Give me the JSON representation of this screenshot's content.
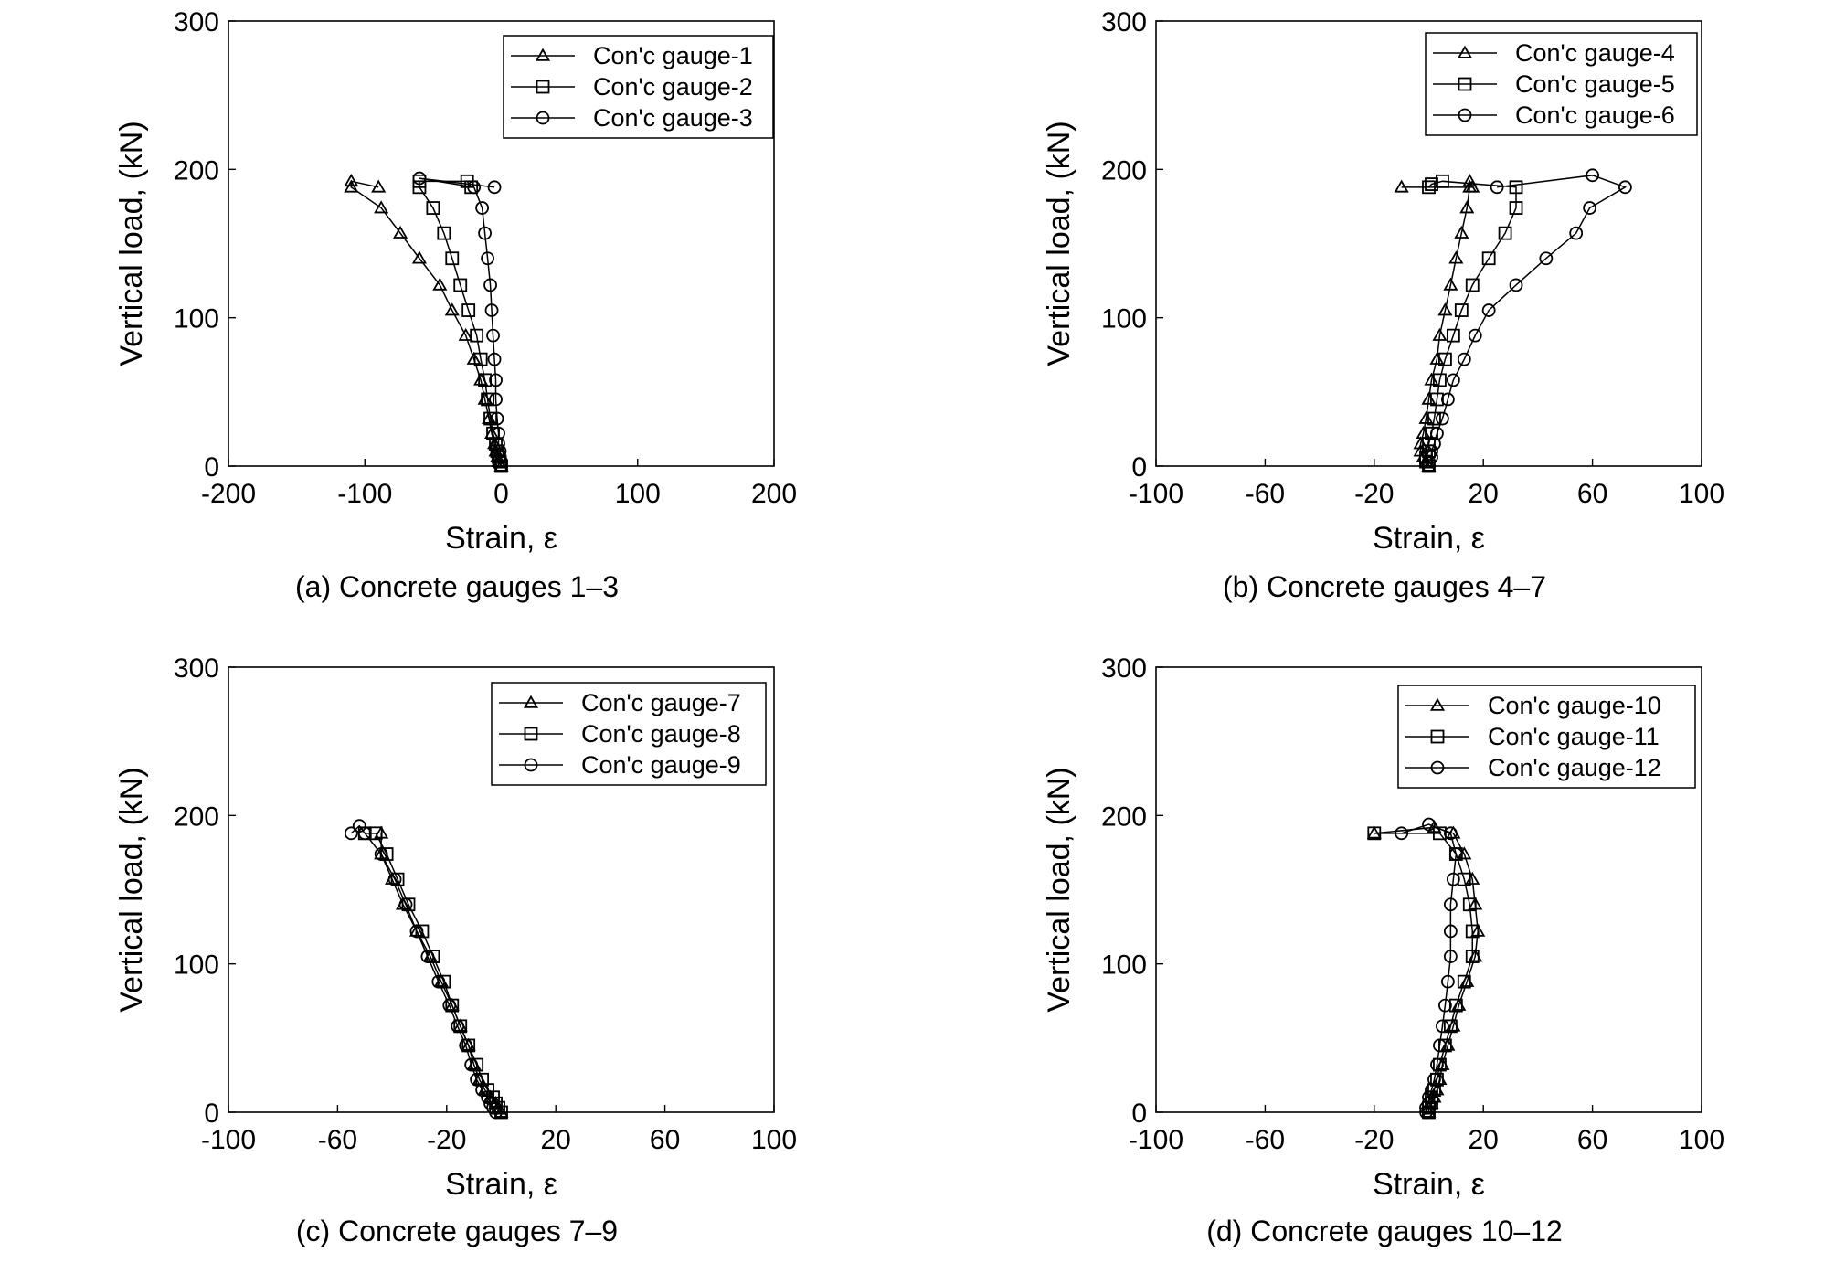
{
  "figure": {
    "captions": [
      "(a) Concrete gauges 1–3",
      "(b) Concrete gauges 4–7",
      "(c) Concrete gauges 7–9",
      "(d) Concrete gauges 10–12"
    ]
  },
  "chart_data": [
    {
      "type": "line",
      "caption": "(a) Concrete gauges 1–3",
      "xlabel": "Strain, ε",
      "ylabel": "Vertical load, (kN)",
      "xlim": [
        -200,
        200
      ],
      "ylim": [
        0,
        300
      ],
      "xticks": [
        -200,
        -100,
        0,
        100,
        200
      ],
      "yticks": [
        0,
        100,
        200,
        300
      ],
      "legend_position": "top-right",
      "series": [
        {
          "name": "Con'c gauge-1",
          "marker": "triangle",
          "x": [
            0,
            -2,
            -3,
            -4,
            -5,
            -7,
            -9,
            -12,
            -15,
            -20,
            -26,
            -36,
            -45,
            -60,
            -74,
            -88,
            -110,
            -110,
            -90
          ],
          "y": [
            0,
            3,
            6,
            10,
            15,
            22,
            32,
            45,
            58,
            72,
            88,
            105,
            122,
            140,
            157,
            174,
            188,
            192,
            188
          ]
        },
        {
          "name": "Con'c gauge-2",
          "marker": "square",
          "x": [
            0,
            -1,
            -2,
            -3,
            -4,
            -6,
            -8,
            -10,
            -12,
            -15,
            -18,
            -24,
            -30,
            -36,
            -42,
            -50,
            -60,
            -60,
            -25,
            -22
          ],
          "y": [
            0,
            3,
            6,
            10,
            15,
            22,
            32,
            45,
            58,
            72,
            88,
            105,
            122,
            140,
            157,
            174,
            188,
            192,
            192,
            188
          ]
        },
        {
          "name": "Con'c gauge-3",
          "marker": "circle",
          "x": [
            0,
            0,
            -1,
            -1,
            -2,
            -2,
            -3,
            -4,
            -4,
            -5,
            -6,
            -7,
            -8,
            -10,
            -12,
            -14,
            -20,
            -60,
            -5
          ],
          "y": [
            0,
            3,
            6,
            10,
            15,
            22,
            32,
            45,
            58,
            72,
            88,
            105,
            122,
            140,
            157,
            174,
            188,
            194,
            188
          ]
        }
      ]
    },
    {
      "type": "line",
      "caption": "(b) Concrete gauges 4–7",
      "xlabel": "Strain, ε",
      "ylabel": "Vertical load, (kN)",
      "xlim": [
        -100,
        100
      ],
      "ylim": [
        0,
        300
      ],
      "xticks": [
        -100,
        -60,
        -20,
        20,
        60,
        100
      ],
      "yticks": [
        0,
        100,
        200,
        300
      ],
      "legend_position": "top-right",
      "series": [
        {
          "name": "Con'c gauge-4",
          "marker": "triangle",
          "x": [
            0,
            -1,
            -2,
            -3,
            -3,
            -2,
            -1,
            0,
            1,
            3,
            4,
            6,
            8,
            10,
            12,
            14,
            15,
            15,
            16,
            -10
          ],
          "y": [
            0,
            3,
            6,
            10,
            15,
            22,
            32,
            45,
            58,
            72,
            88,
            105,
            122,
            140,
            157,
            174,
            188,
            192,
            188,
            188
          ]
        },
        {
          "name": "Con'c gauge-5",
          "marker": "square",
          "x": [
            0,
            -1,
            -1,
            0,
            0,
            1,
            2,
            3,
            4,
            6,
            9,
            12,
            16,
            22,
            28,
            32,
            32,
            5,
            1,
            0
          ],
          "y": [
            0,
            3,
            6,
            10,
            15,
            22,
            32,
            45,
            58,
            72,
            88,
            105,
            122,
            140,
            157,
            174,
            188,
            192,
            190,
            188
          ]
        },
        {
          "name": "Con'c gauge-6",
          "marker": "circle",
          "x": [
            0,
            0,
            1,
            1,
            2,
            3,
            5,
            7,
            9,
            13,
            17,
            22,
            32,
            43,
            54,
            59,
            72,
            60,
            25
          ],
          "y": [
            0,
            3,
            6,
            10,
            15,
            22,
            32,
            45,
            58,
            72,
            88,
            105,
            122,
            140,
            157,
            174,
            188,
            196,
            188
          ]
        }
      ]
    },
    {
      "type": "line",
      "caption": "(c) Concrete gauges 7–9",
      "xlabel": "Strain, ε",
      "ylabel": "Vertical load, (kN)",
      "xlim": [
        -100,
        100
      ],
      "ylim": [
        0,
        300
      ],
      "xticks": [
        -100,
        -60,
        -20,
        20,
        60,
        100
      ],
      "yticks": [
        0,
        100,
        200,
        300
      ],
      "legend_position": "top-right",
      "series": [
        {
          "name": "Con'c gauge-7",
          "marker": "triangle",
          "x": [
            0,
            -1,
            -2,
            -4,
            -6,
            -8,
            -10,
            -12,
            -15,
            -18,
            -22,
            -26,
            -31,
            -36,
            -40,
            -44,
            -44
          ],
          "y": [
            0,
            3,
            6,
            10,
            15,
            22,
            32,
            45,
            58,
            72,
            88,
            105,
            122,
            140,
            157,
            174,
            188
          ]
        },
        {
          "name": "Con'c gauge-8",
          "marker": "square",
          "x": [
            0,
            -1,
            -2,
            -3,
            -5,
            -7,
            -9,
            -12,
            -15,
            -18,
            -21,
            -25,
            -29,
            -34,
            -38,
            -42,
            -46,
            -50
          ],
          "y": [
            0,
            3,
            6,
            10,
            15,
            22,
            32,
            45,
            58,
            72,
            88,
            105,
            122,
            140,
            157,
            174,
            188,
            188
          ]
        },
        {
          "name": "Con'c gauge-9",
          "marker": "circle",
          "x": [
            -2,
            -3,
            -4,
            -5,
            -7,
            -9,
            -11,
            -13,
            -16,
            -19,
            -23,
            -27,
            -31,
            -35,
            -39,
            -44,
            -50,
            -52,
            -55
          ],
          "y": [
            0,
            3,
            6,
            10,
            15,
            22,
            32,
            45,
            58,
            72,
            88,
            105,
            122,
            140,
            157,
            174,
            188,
            193,
            188
          ]
        }
      ]
    },
    {
      "type": "line",
      "caption": "(d) Concrete gauges 10–12",
      "xlabel": "Strain, ε",
      "ylabel": "Vertical load, (kN)",
      "xlim": [
        -100,
        100
      ],
      "ylim": [
        0,
        300
      ],
      "xticks": [
        -100,
        -60,
        -20,
        20,
        60,
        100
      ],
      "yticks": [
        0,
        100,
        200,
        300
      ],
      "legend_position": "top-right",
      "series": [
        {
          "name": "Con'c gauge-10",
          "marker": "triangle",
          "x": [
            0,
            0,
            1,
            2,
            3,
            4,
            5,
            7,
            9,
            11,
            14,
            17,
            18,
            17,
            16,
            13,
            9,
            2,
            -20
          ],
          "y": [
            0,
            3,
            6,
            10,
            15,
            22,
            32,
            45,
            58,
            72,
            88,
            105,
            122,
            140,
            157,
            174,
            188,
            192,
            188
          ]
        },
        {
          "name": "Con'c gauge-11",
          "marker": "square",
          "x": [
            0,
            0,
            1,
            1,
            2,
            3,
            4,
            6,
            8,
            10,
            13,
            16,
            16,
            15,
            13,
            10,
            4,
            -20
          ],
          "y": [
            0,
            3,
            6,
            10,
            15,
            22,
            32,
            45,
            58,
            72,
            88,
            105,
            122,
            140,
            157,
            174,
            188,
            188
          ]
        },
        {
          "name": "Con'c gauge-12",
          "marker": "circle",
          "x": [
            -1,
            -1,
            0,
            0,
            1,
            2,
            3,
            4,
            5,
            6,
            7,
            8,
            8,
            8,
            9,
            10,
            8,
            0,
            -10
          ],
          "y": [
            0,
            3,
            6,
            10,
            15,
            22,
            32,
            45,
            58,
            72,
            88,
            105,
            122,
            140,
            157,
            174,
            188,
            194,
            188
          ]
        }
      ]
    }
  ]
}
